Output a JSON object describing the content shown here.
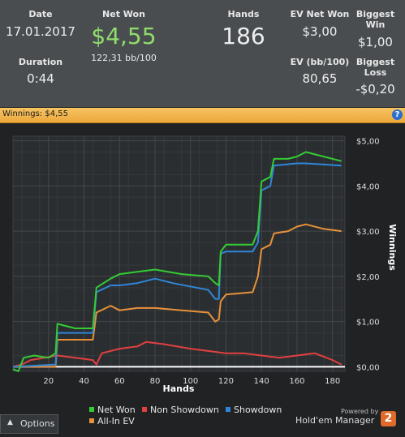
{
  "stats": {
    "date": {
      "label": "Date",
      "value": "17.01.2017"
    },
    "duration": {
      "label": "Duration",
      "value": "0:44"
    },
    "net_won": {
      "label": "Net Won",
      "value": "$4,55",
      "sub": "122,31 bb/100"
    },
    "hands": {
      "label": "Hands",
      "value": "186"
    },
    "ev_net_won": {
      "label": "EV Net Won",
      "value": "$3,00"
    },
    "ev_bb100": {
      "label": "EV (bb/100)",
      "value": "80,65"
    },
    "biggest_win": {
      "label": "Biggest Win",
      "value": "$1,00"
    },
    "biggest_loss": {
      "label": "Biggest Loss",
      "value": "-$0,20"
    }
  },
  "panel": {
    "title": "Winnings: $4,55",
    "help": "?"
  },
  "chart_data": {
    "type": "line",
    "xlabel": "Hands",
    "ylabel": "Winnings",
    "xlim": [
      0,
      187
    ],
    "ylim": [
      -0.1,
      5.1
    ],
    "xticks": [
      20,
      40,
      60,
      80,
      100,
      120,
      140,
      160,
      180
    ],
    "yticks": [
      "$0,00",
      "$1,00",
      "$2,00",
      "$3,00",
      "$4,00",
      "$5,00"
    ],
    "grid": true,
    "legend_position": "bottom",
    "series": [
      {
        "name": "Net Won",
        "color": "#33cc33",
        "points": [
          [
            0,
            -0.05
          ],
          [
            3,
            -0.1
          ],
          [
            6,
            0.2
          ],
          [
            12,
            0.25
          ],
          [
            20,
            0.2
          ],
          [
            24,
            0.3
          ],
          [
            25,
            0.95
          ],
          [
            35,
            0.85
          ],
          [
            45,
            0.85
          ],
          [
            47,
            1.75
          ],
          [
            55,
            1.95
          ],
          [
            60,
            2.05
          ],
          [
            70,
            2.1
          ],
          [
            80,
            2.15
          ],
          [
            95,
            2.05
          ],
          [
            110,
            2.0
          ],
          [
            114,
            1.85
          ],
          [
            116,
            1.8
          ],
          [
            117,
            2.55
          ],
          [
            120,
            2.7
          ],
          [
            135,
            2.7
          ],
          [
            138,
            3.0
          ],
          [
            140,
            4.1
          ],
          [
            145,
            4.2
          ],
          [
            147,
            4.6
          ],
          [
            155,
            4.6
          ],
          [
            160,
            4.65
          ],
          [
            165,
            4.75
          ],
          [
            175,
            4.65
          ],
          [
            185,
            4.55
          ]
        ]
      },
      {
        "name": "Non Showdown",
        "color": "#e04040",
        "points": [
          [
            0,
            0.0
          ],
          [
            5,
            0.05
          ],
          [
            10,
            0.15
          ],
          [
            25,
            0.25
          ],
          [
            35,
            0.2
          ],
          [
            45,
            0.15
          ],
          [
            47,
            0.05
          ],
          [
            50,
            0.3
          ],
          [
            60,
            0.4
          ],
          [
            70,
            0.45
          ],
          [
            75,
            0.55
          ],
          [
            85,
            0.5
          ],
          [
            100,
            0.4
          ],
          [
            110,
            0.35
          ],
          [
            120,
            0.3
          ],
          [
            130,
            0.3
          ],
          [
            140,
            0.25
          ],
          [
            150,
            0.2
          ],
          [
            160,
            0.25
          ],
          [
            170,
            0.3
          ],
          [
            180,
            0.15
          ],
          [
            185,
            0.05
          ]
        ]
      },
      {
        "name": "Showdown",
        "color": "#2f86d8",
        "points": [
          [
            0,
            0.0
          ],
          [
            24,
            0.05
          ],
          [
            25,
            0.75
          ],
          [
            45,
            0.75
          ],
          [
            47,
            1.65
          ],
          [
            55,
            1.8
          ],
          [
            60,
            1.8
          ],
          [
            70,
            1.85
          ],
          [
            80,
            1.95
          ],
          [
            90,
            1.85
          ],
          [
            110,
            1.7
          ],
          [
            114,
            1.5
          ],
          [
            116,
            1.5
          ],
          [
            117,
            2.5
          ],
          [
            120,
            2.55
          ],
          [
            135,
            2.55
          ],
          [
            138,
            2.75
          ],
          [
            140,
            3.9
          ],
          [
            145,
            4.0
          ],
          [
            147,
            4.45
          ],
          [
            160,
            4.5
          ],
          [
            165,
            4.5
          ],
          [
            185,
            4.45
          ]
        ]
      },
      {
        "name": "All-In EV",
        "color": "#e8913a",
        "points": [
          [
            0,
            0.0
          ],
          [
            24,
            0.0
          ],
          [
            25,
            0.6
          ],
          [
            45,
            0.6
          ],
          [
            47,
            1.2
          ],
          [
            55,
            1.35
          ],
          [
            60,
            1.25
          ],
          [
            70,
            1.3
          ],
          [
            80,
            1.3
          ],
          [
            95,
            1.25
          ],
          [
            110,
            1.2
          ],
          [
            114,
            1.0
          ],
          [
            116,
            1.05
          ],
          [
            117,
            1.45
          ],
          [
            120,
            1.6
          ],
          [
            135,
            1.65
          ],
          [
            138,
            2.0
          ],
          [
            140,
            2.6
          ],
          [
            145,
            2.7
          ],
          [
            147,
            2.95
          ],
          [
            155,
            3.0
          ],
          [
            160,
            3.1
          ],
          [
            165,
            3.15
          ],
          [
            175,
            3.05
          ],
          [
            185,
            3.0
          ]
        ]
      }
    ]
  },
  "legend": [
    {
      "name": "Net Won",
      "color": "#33cc33"
    },
    {
      "name": "Non Showdown",
      "color": "#e04040"
    },
    {
      "name": "Showdown",
      "color": "#2f86d8"
    },
    {
      "name": "All-In EV",
      "color": "#e8913a"
    }
  ],
  "footer": {
    "options_label": "Options",
    "powered_by": "Powered by",
    "brand": "Hold'em Manager",
    "logo_text": "2"
  }
}
